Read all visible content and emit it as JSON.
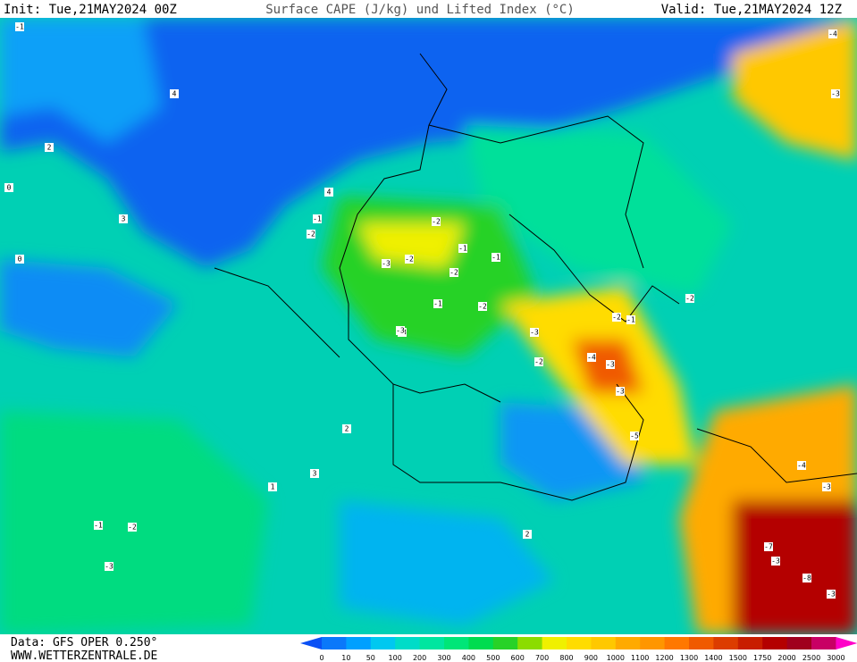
{
  "header": {
    "init": "Init: Tue,21MAY2024 00Z",
    "title": "Surface CAPE (J/kg) und Lifted Index (°C)",
    "valid": "Valid: Tue,21MAY2024 12Z"
  },
  "footer": {
    "data": "Data: GFS OPER 0.250°",
    "url": "WWW.WETTERZENTRALE.DE"
  },
  "colorbar": {
    "labels": [
      "0",
      "10",
      "50",
      "100",
      "200",
      "300",
      "400",
      "500",
      "600",
      "700",
      "800",
      "900",
      "1000",
      "1100",
      "1200",
      "1300",
      "1400",
      "1500",
      "1750",
      "2000",
      "2500",
      "3000"
    ],
    "colors": [
      "#0a50f5",
      "#0a78fa",
      "#00a0ff",
      "#00c8f0",
      "#00dcc8",
      "#00e6a0",
      "#00e678",
      "#00dc50",
      "#28d228",
      "#8cdc00",
      "#f0f000",
      "#ffdc00",
      "#ffc800",
      "#ffaa00",
      "#ff9600",
      "#ff7800",
      "#f05a00",
      "#dc3c00",
      "#c81e00",
      "#b40000",
      "#a0001e",
      "#c80064",
      "#ff00c8"
    ]
  },
  "map_labels": [
    "-1",
    "0",
    "4",
    "3",
    "2",
    "-1",
    "-2",
    "-2",
    "-3",
    "-2",
    "-1",
    "-1",
    "-2",
    "-3",
    "-1",
    "-2",
    "-3",
    "-4",
    "-3",
    "-3",
    "-2",
    "-1",
    "-2",
    "-4",
    "-3",
    "-5",
    "-4",
    "-3",
    "-7",
    "-3",
    "-8",
    "-3",
    "-2",
    "-3",
    "-1",
    "2",
    "3",
    "4",
    "0",
    "1",
    "2",
    "-3",
    "-2"
  ]
}
